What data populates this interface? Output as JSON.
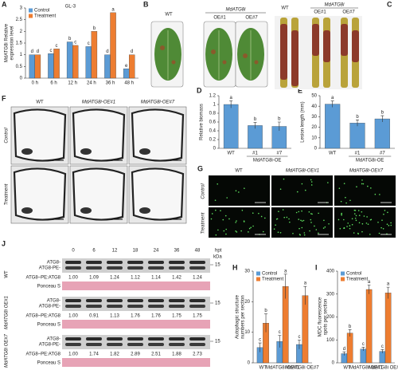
{
  "chart_data": [
    {
      "type": "bar",
      "panel": "A",
      "annotation": "GL-3",
      "ylabel": [
        "MdATG8i Relative",
        "expression level"
      ],
      "categories": [
        "0 h",
        "6 h",
        "12 h",
        "24 h",
        "36 h",
        "48 h"
      ],
      "series": [
        {
          "name": "Control",
          "color": "#5b9bd5",
          "values": [
            1.0,
            1.05,
            1.55,
            1.35,
            1.0,
            0.4
          ],
          "letters": [
            "d",
            "c",
            "b",
            "c",
            "d",
            "e"
          ]
        },
        {
          "name": "Treatment",
          "color": "#ed7d31",
          "values": [
            1.0,
            1.25,
            1.4,
            2.0,
            2.8,
            1.0
          ],
          "letters": [
            "d",
            "c",
            "c",
            "b",
            "a",
            "d"
          ]
        }
      ],
      "ylim": [
        0,
        3
      ],
      "yticks": [
        0,
        0.5,
        1,
        1.5,
        2,
        2.5,
        3
      ],
      "legend": "top-left"
    },
    {
      "type": "bar",
      "panel": "D",
      "ylabel": [
        "Relative biomass"
      ],
      "categories": [
        "WT",
        "#1",
        "#7"
      ],
      "group_label": "MdATG8i-OE",
      "color": "#5b9bd5",
      "values": [
        1.0,
        0.52,
        0.5
      ],
      "errors": [
        0.08,
        0.07,
        0.1
      ],
      "letters": [
        "a",
        "b",
        "b"
      ],
      "ylim": [
        0,
        1.2
      ],
      "yticks": [
        0,
        0.2,
        0.4,
        0.6,
        0.8,
        1,
        1.2
      ]
    },
    {
      "type": "bar",
      "panel": "E",
      "ylabel": [
        "Lesion length (mm)"
      ],
      "categories": [
        "WT",
        "#1",
        "#7"
      ],
      "group_label": "MdATG8i-OE",
      "color": "#5b9bd5",
      "values": [
        42,
        24,
        28
      ],
      "errors": [
        3,
        3,
        3
      ],
      "letters": [
        "a",
        "b",
        "b"
      ],
      "ylim": [
        0,
        50
      ],
      "yticks": [
        0,
        10,
        20,
        30,
        40,
        50
      ]
    },
    {
      "type": "bar",
      "panel": "H",
      "ylabel": [
        "Autophagic structure",
        "numbers per section"
      ],
      "categories": [
        "WT",
        "MdATG8i OE#1",
        "MdATG8i OE#7"
      ],
      "series": [
        {
          "name": "Control",
          "color": "#5b9bd5",
          "values": [
            5,
            7,
            6
          ],
          "errors": [
            1.5,
            2,
            1.5
          ],
          "letters": [
            "c",
            "c",
            "c"
          ]
        },
        {
          "name": "Treatment",
          "color": "#ed7d31",
          "values": [
            13,
            25,
            22
          ],
          "errors": [
            3,
            4,
            3
          ],
          "letters": [
            "b",
            "a",
            "a"
          ]
        }
      ],
      "ylim": [
        0,
        30
      ],
      "yticks": [
        0,
        10,
        20,
        30
      ],
      "legend": "top-left"
    },
    {
      "type": "bar",
      "panel": "I",
      "ylabel": [
        "MDC fluorescence",
        "spots per section"
      ],
      "categories": [
        "WT",
        "MdATG8i OE#1",
        "MdATG8i OE#7"
      ],
      "series": [
        {
          "name": "Control",
          "color": "#5b9bd5",
          "values": [
            40,
            60,
            50
          ],
          "errors": [
            8,
            8,
            8
          ],
          "letters": [
            "d",
            "c",
            "c"
          ]
        },
        {
          "name": "Treatment",
          "color": "#ed7d31",
          "values": [
            130,
            320,
            305
          ],
          "errors": [
            15,
            20,
            25
          ],
          "letters": [
            "b",
            "a",
            "a"
          ]
        }
      ],
      "ylim": [
        0,
        400
      ],
      "yticks": [
        0,
        100,
        200,
        300,
        400
      ],
      "legend": "top-left"
    }
  ],
  "figure": {
    "B": {
      "panel": "B",
      "wt": "WT",
      "line": "MdATG8i",
      "oe1": "OE#1",
      "oe7": "OE#7"
    },
    "C": {
      "panel": "C",
      "wt": "WT",
      "line": "MdATG8i",
      "oe1": "OE#1",
      "oe7": "OE#7"
    },
    "F": {
      "panel": "F",
      "columns": [
        "WT",
        "MdATG8i-OE#1",
        "MdATG8i-OE#7"
      ],
      "rows": [
        "Control",
        "Treatment"
      ]
    },
    "G": {
      "panel": "G",
      "columns": [
        "WT",
        "MdATG8i-OE#1",
        "MdATG8i-OE#7"
      ],
      "rows": [
        "Control",
        "Treatment"
      ]
    },
    "J": {
      "panel": "J",
      "times": [
        "0",
        "6",
        "12",
        "18",
        "24",
        "36",
        "48"
      ],
      "unit": "hpt",
      "kda": "kDa",
      "blocks": [
        {
          "row": "WT",
          "band1": "ATG8-",
          "band2": "ATG8-PE-",
          "mw": "15",
          "ratio_label": "ATG8–PE:ATG8",
          "ratios": [
            "1.00",
            "1.09",
            "1.24",
            "1.12",
            "1.14",
            "1.42",
            "1.24"
          ],
          "ponceau": "Ponceau S"
        },
        {
          "row": "MdATG8i OE#1",
          "band1": "ATG8-",
          "band2": "ATG8-PE-",
          "mw": "15",
          "ratio_label": "ATG8–PE:ATG8",
          "ratios": [
            "1.00",
            "0.91",
            "1.13",
            "1.76",
            "1.76",
            "1.75",
            "1.75"
          ],
          "ponceau": "Ponceau S"
        },
        {
          "row": "MdATG8i OE#7",
          "band1": "ATG8-",
          "band2": "ATG8-PE-",
          "mw": "15",
          "ratio_label": "ATG8–PE:ATG8",
          "ratios": [
            "1.00",
            "1.74",
            "1.82",
            "2.89",
            "2.51",
            "1.88",
            "2.73"
          ],
          "ponceau": "Ponceau S"
        }
      ]
    }
  }
}
